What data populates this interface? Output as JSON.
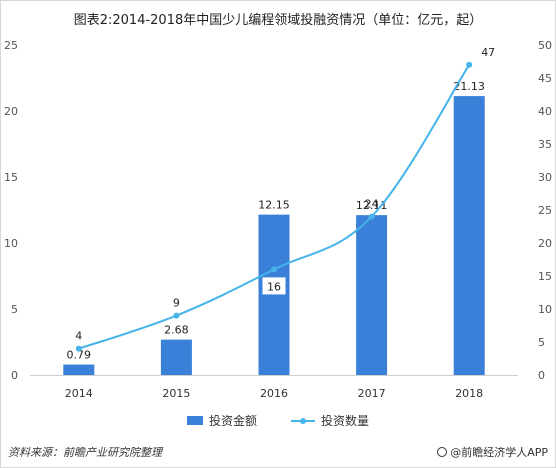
{
  "title": "图表2:2014-2018年中国少儿编程领域投融资情况（单位：亿元，起）",
  "source": "资料来源：前瞻产业研究院整理",
  "brand": "@前瞻经济学人APP",
  "colors": {
    "bar": "#3a7fd8",
    "line": "#45b4ea"
  },
  "chart_data": {
    "type": "bar+line",
    "categories": [
      "2014",
      "2015",
      "2016",
      "2017",
      "2018"
    ],
    "series": [
      {
        "name": "投资金额",
        "type": "bar",
        "axis": "left",
        "values": [
          0.79,
          2.68,
          12.15,
          12.11,
          21.13
        ]
      },
      {
        "name": "投资数量",
        "type": "line",
        "axis": "right",
        "values": [
          4,
          9,
          16,
          24,
          47
        ]
      }
    ],
    "y_left": {
      "range": [
        0,
        25
      ],
      "ticks": [
        0,
        5,
        10,
        15,
        20,
        25
      ]
    },
    "y_right": {
      "range": [
        0,
        50
      ],
      "ticks": [
        0,
        5,
        10,
        15,
        20,
        25,
        30,
        35,
        40,
        45,
        50
      ]
    },
    "bar_labels": [
      "0.79",
      "2.68",
      "12.15",
      "12.11",
      "21.13"
    ],
    "line_labels": [
      "4",
      "9",
      "16",
      "24",
      "47"
    ],
    "legend_position": "bottom",
    "grid": false
  }
}
